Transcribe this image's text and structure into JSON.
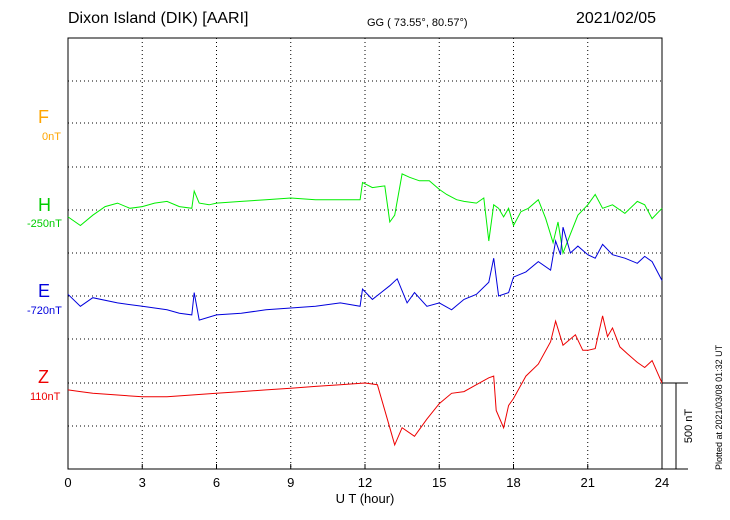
{
  "header": {
    "station": "Dixon Island (DIK)  [AARI]",
    "coords": "GG ( 73.55°,  80.57°)",
    "date": "2021/02/05"
  },
  "side_note": "Plotted at 2021/03/08 01:32 UT",
  "chart_data": {
    "type": "line",
    "xlabel": "U T (hour)",
    "xlim": [
      0,
      24
    ],
    "xticks": [
      "0",
      "3",
      "6",
      "9",
      "12",
      "15",
      "18",
      "21",
      "24"
    ],
    "scale_bar_label": "500 nT",
    "series": [
      {
        "name": "F",
        "baseline_label": "0nT",
        "color": "#ffa500",
        "x": [],
        "y": []
      },
      {
        "name": "H",
        "baseline_label": "-250nT",
        "color": "#00ee00",
        "x": [
          0,
          0.5,
          1.0,
          1.5,
          2.0,
          2.5,
          3.0,
          3.5,
          4.0,
          4.5,
          5.0,
          5.1,
          5.3,
          5.7,
          6.0,
          7.0,
          8.0,
          9.0,
          10.0,
          11.0,
          11.8,
          11.9,
          12.3,
          12.8,
          13.0,
          13.2,
          13.5,
          13.8,
          14.2,
          14.6,
          15.0,
          15.3,
          15.7,
          16.0,
          16.5,
          16.8,
          17.0,
          17.2,
          17.4,
          17.6,
          17.8,
          18.0,
          18.3,
          18.6,
          19.0,
          19.3,
          19.6,
          19.8,
          20.0,
          20.3,
          20.6,
          21.0,
          21.3,
          21.6,
          22.0,
          22.5,
          23.0,
          23.3,
          23.6,
          24.0
        ],
        "y": [
          -290,
          -340,
          -280,
          -230,
          -210,
          -240,
          -230,
          -210,
          -200,
          -230,
          -240,
          -140,
          -210,
          -220,
          -210,
          -200,
          -190,
          -180,
          -190,
          -190,
          -190,
          -90,
          -120,
          -110,
          -320,
          -280,
          -40,
          -60,
          -80,
          -80,
          -130,
          -160,
          -190,
          -200,
          -210,
          -180,
          -430,
          -220,
          -240,
          -290,
          -240,
          -340,
          -260,
          -240,
          -190,
          -300,
          -440,
          -320,
          -500,
          -390,
          -280,
          -220,
          -160,
          -240,
          -220,
          -270,
          -200,
          -220,
          -300,
          -240
        ]
      },
      {
        "name": "E",
        "baseline_label": "-720nT",
        "color": "#0000dd",
        "x": [
          0,
          0.5,
          1.0,
          2.0,
          3.0,
          4.0,
          4.5,
          5.0,
          5.1,
          5.3,
          6.0,
          7.0,
          8.0,
          9.0,
          10.0,
          11.0,
          11.8,
          11.9,
          12.3,
          13.0,
          13.3,
          13.7,
          14.0,
          14.5,
          15.0,
          15.5,
          16.0,
          16.5,
          17.0,
          17.2,
          17.4,
          17.8,
          18.0,
          18.5,
          19.0,
          19.5,
          19.7,
          19.9,
          20.0,
          20.3,
          20.6,
          21.0,
          21.3,
          21.6,
          22.0,
          22.5,
          23.0,
          23.3,
          23.6,
          24.0
        ],
        "y": [
          -710,
          -780,
          -730,
          -760,
          -780,
          -800,
          -820,
          -830,
          -700,
          -860,
          -830,
          -820,
          -800,
          -790,
          -780,
          -760,
          -780,
          -680,
          -740,
          -660,
          -620,
          -760,
          -700,
          -780,
          -760,
          -800,
          -740,
          -710,
          -640,
          -500,
          -720,
          -700,
          -610,
          -580,
          -520,
          -570,
          -400,
          -480,
          -320,
          -470,
          -430,
          -480,
          -500,
          -420,
          -480,
          -500,
          -530,
          -490,
          -520,
          -630
        ]
      },
      {
        "name": "Z",
        "baseline_label": "110nT",
        "color": "#ee0000",
        "x": [
          0,
          0.5,
          1.0,
          2.0,
          3.0,
          4.0,
          5.0,
          6.0,
          7.0,
          8.0,
          9.0,
          10.0,
          11.0,
          12.0,
          12.5,
          13.0,
          13.2,
          13.5,
          14.0,
          14.5,
          15.0,
          15.5,
          16.0,
          16.5,
          17.0,
          17.2,
          17.3,
          17.6,
          17.8,
          18.0,
          18.5,
          19.0,
          19.5,
          19.7,
          20.0,
          20.5,
          20.8,
          21.0,
          21.3,
          21.6,
          21.8,
          22.0,
          22.3,
          22.6,
          23.0,
          23.3,
          23.6,
          24.0
        ],
        "y": [
          70,
          60,
          50,
          40,
          30,
          30,
          40,
          50,
          60,
          70,
          80,
          90,
          100,
          110,
          100,
          -150,
          -250,
          -150,
          -200,
          -100,
          -10,
          50,
          60,
          100,
          140,
          150,
          -50,
          -150,
          -20,
          20,
          150,
          220,
          350,
          470,
          330,
          390,
          300,
          300,
          310,
          500,
          380,
          430,
          320,
          280,
          230,
          200,
          240,
          110
        ]
      }
    ]
  }
}
